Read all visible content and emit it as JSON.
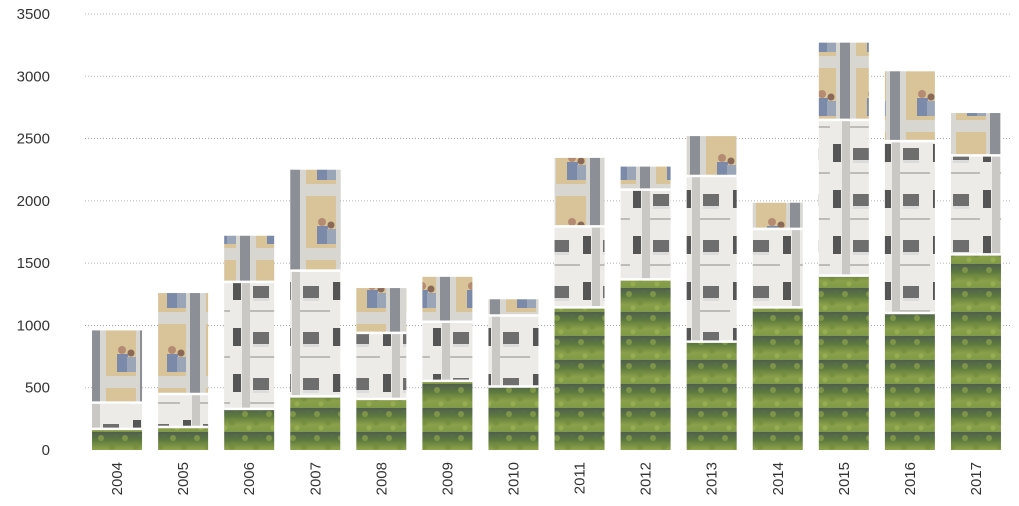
{
  "chart_data": {
    "type": "bar",
    "stacked": true,
    "categories": [
      "2004",
      "2005",
      "2006",
      "2007",
      "2008",
      "2009",
      "2010",
      "2011",
      "2012",
      "2013",
      "2014",
      "2015",
      "2016",
      "2017"
    ],
    "segments": [
      {
        "texture": "grass-photo",
        "color": "#6f8f4a"
      },
      {
        "texture": "building-facade-photo",
        "color": "#e8e6e2"
      },
      {
        "texture": "people-at-window-photo",
        "color": "#cdb58c"
      }
    ],
    "stack_values": [
      [
        170,
        210,
        580
      ],
      [
        185,
        265,
        810
      ],
      [
        330,
        1020,
        370
      ],
      [
        430,
        1010,
        810
      ],
      [
        410,
        530,
        360
      ],
      [
        555,
        475,
        360
      ],
      [
        510,
        570,
        130
      ],
      [
        1145,
        650,
        550
      ],
      [
        1370,
        720,
        185
      ],
      [
        870,
        1330,
        320
      ],
      [
        1145,
        630,
        210
      ],
      [
        1400,
        1250,
        620
      ],
      [
        1100,
        1380,
        560
      ],
      [
        1570,
        795,
        340
      ]
    ],
    "totals": [
      960,
      1260,
      1720,
      2250,
      1300,
      1390,
      1210,
      2345,
      2275,
      2520,
      1985,
      3270,
      3040,
      2705
    ],
    "yticks": [
      "0",
      "500",
      "1000",
      "1500",
      "2000",
      "2500",
      "3000",
      "3500"
    ],
    "ylim": [
      0,
      3500
    ],
    "grid": true,
    "legend": "none",
    "xtick_rotation": "vertical"
  }
}
